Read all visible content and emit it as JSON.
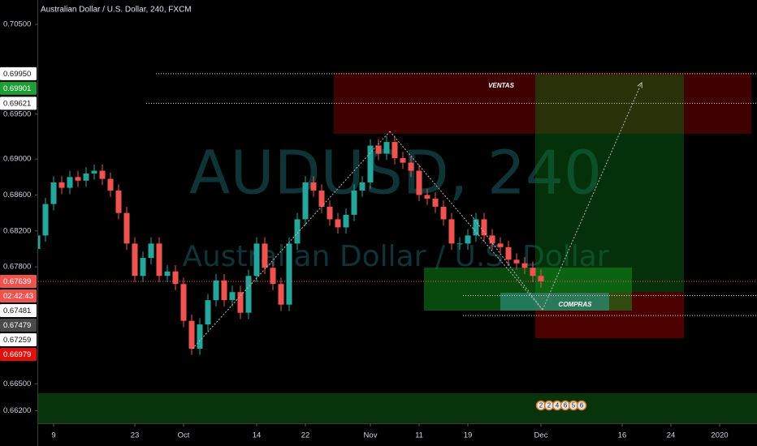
{
  "chart_data": {
    "type": "candlestick",
    "title": "Australian Dollar / U.S. Dollar, 240, FXCM",
    "watermark": [
      "AUDUSD, 240",
      "Australian Dollar / U.S. Dollar"
    ],
    "annotations": [
      "VENTAS",
      "COMPRAS"
    ],
    "up_color": "#26a69a",
    "down_color": "#ef5350",
    "x": [
      -2,
      -1,
      0,
      1,
      2,
      3,
      4,
      5,
      6,
      7,
      8,
      9,
      10,
      11,
      12,
      13,
      14,
      15,
      16,
      17,
      18,
      19,
      20,
      21,
      22,
      23,
      24,
      25,
      26,
      27,
      28,
      29,
      30,
      31,
      32,
      33,
      34,
      35,
      36,
      37,
      38,
      39,
      40,
      41,
      42,
      43,
      44,
      45,
      46,
      47,
      48,
      49,
      50,
      51,
      52,
      53,
      54,
      55,
      56,
      57,
      58,
      59,
      60
    ],
    "open": [
      0.68,
      0.6815,
      0.685,
      0.6874,
      0.6868,
      0.688,
      0.6876,
      0.6884,
      0.6887,
      0.6878,
      0.6865,
      0.684,
      0.6806,
      0.677,
      0.679,
      0.6806,
      0.677,
      0.6775,
      0.6761,
      0.672,
      0.6689,
      0.6716,
      0.6743,
      0.6765,
      0.6743,
      0.6752,
      0.6729,
      0.677,
      0.6806,
      0.6779,
      0.6761,
      0.6738,
      0.6806,
      0.6833,
      0.6874,
      0.6865,
      0.6847,
      0.6833,
      0.6824,
      0.6838,
      0.6865,
      0.6874,
      0.6915,
      0.6906,
      0.6919,
      0.6901,
      0.6896,
      0.6887,
      0.686,
      0.6856,
      0.6847,
      0.6833,
      0.6806,
      0.6806,
      0.6815,
      0.6833,
      0.6815,
      0.6806,
      0.6802,
      0.6788,
      0.6784,
      0.6779,
      0.677
    ],
    "high": [
      0.6822,
      0.6857,
      0.6881,
      0.6881,
      0.6887,
      0.6887,
      0.6891,
      0.6894,
      0.6894,
      0.6885,
      0.6872,
      0.6847,
      0.6813,
      0.6797,
      0.6813,
      0.6813,
      0.6782,
      0.6782,
      0.6768,
      0.6727,
      0.6723,
      0.675,
      0.6772,
      0.6772,
      0.6759,
      0.6759,
      0.6777,
      0.6813,
      0.6813,
      0.6786,
      0.6768,
      0.6813,
      0.684,
      0.6881,
      0.6881,
      0.6872,
      0.6854,
      0.684,
      0.6845,
      0.6872,
      0.6881,
      0.6922,
      0.6922,
      0.6926,
      0.6926,
      0.6908,
      0.6903,
      0.6894,
      0.6867,
      0.6863,
      0.6854,
      0.684,
      0.6813,
      0.6822,
      0.684,
      0.684,
      0.6822,
      0.6813,
      0.6809,
      0.6795,
      0.6791,
      0.6786,
      0.6777
    ],
    "low": [
      0.6793,
      0.6808,
      0.6843,
      0.6861,
      0.6861,
      0.6869,
      0.6869,
      0.6877,
      0.6871,
      0.6858,
      0.6833,
      0.6799,
      0.6763,
      0.6763,
      0.6783,
      0.6763,
      0.6763,
      0.6754,
      0.6713,
      0.6682,
      0.6682,
      0.6709,
      0.6736,
      0.6736,
      0.6736,
      0.6722,
      0.6722,
      0.6763,
      0.6772,
      0.6754,
      0.6731,
      0.6731,
      0.6799,
      0.6826,
      0.6858,
      0.684,
      0.6826,
      0.6817,
      0.6817,
      0.6831,
      0.6858,
      0.6867,
      0.6899,
      0.6899,
      0.6894,
      0.6889,
      0.688,
      0.6853,
      0.6849,
      0.684,
      0.6826,
      0.6799,
      0.6799,
      0.6799,
      0.6808,
      0.6808,
      0.6799,
      0.6795,
      0.6781,
      0.6777,
      0.6772,
      0.6763,
      0.6757
    ],
    "close": [
      0.6815,
      0.685,
      0.6874,
      0.6868,
      0.688,
      0.6876,
      0.6884,
      0.6887,
      0.6878,
      0.6865,
      0.684,
      0.6806,
      0.677,
      0.679,
      0.6806,
      0.677,
      0.6775,
      0.6761,
      0.672,
      0.6689,
      0.6716,
      0.6743,
      0.6765,
      0.6743,
      0.6752,
      0.6729,
      0.677,
      0.6806,
      0.6779,
      0.6761,
      0.6738,
      0.6806,
      0.6833,
      0.6874,
      0.6865,
      0.6847,
      0.6833,
      0.6824,
      0.6838,
      0.6865,
      0.6874,
      0.6915,
      0.6906,
      0.6919,
      0.6901,
      0.6896,
      0.6887,
      0.686,
      0.6856,
      0.6847,
      0.6833,
      0.6806,
      0.6806,
      0.6815,
      0.6833,
      0.6815,
      0.6806,
      0.6802,
      0.6788,
      0.6784,
      0.6779,
      0.677,
      0.6764
    ],
    "xlim": [
      -1.9,
      86.6
    ],
    "ylim": [
      0.6606,
      0.7077
    ],
    "xticks": [
      {
        "value": 0,
        "label": "9"
      },
      {
        "value": 10,
        "label": "23"
      },
      {
        "value": 16,
        "label": "Oct"
      },
      {
        "value": 25,
        "label": "14"
      },
      {
        "value": 31,
        "label": "22"
      },
      {
        "value": 39,
        "label": "Nov"
      },
      {
        "value": 45,
        "label": "11"
      },
      {
        "value": 51,
        "label": "19"
      },
      {
        "value": 60,
        "label": "Dec"
      },
      {
        "value": 70,
        "label": "16"
      },
      {
        "value": 76,
        "label": "24"
      },
      {
        "value": 82,
        "label": "2020"
      }
    ],
    "yticks": [
      {
        "value": 0.705,
        "label": "0.70500"
      },
      {
        "value": 0.695,
        "label": "0.69500"
      },
      {
        "value": 0.69,
        "label": "0.69000"
      },
      {
        "value": 0.686,
        "label": "0.68600"
      },
      {
        "value": 0.682,
        "label": "0.68200"
      },
      {
        "value": 0.678,
        "label": "0.67800"
      },
      {
        "value": 0.665,
        "label": "0.66500"
      },
      {
        "value": 0.662,
        "label": "0.66200"
      }
    ],
    "price_labels": [
      {
        "value": 0.6995,
        "label": "0.69950",
        "color": "#ffffff"
      },
      {
        "value": 0.69901,
        "label": "0.69901",
        "color": "#1e9e35"
      },
      {
        "value": 0.69621,
        "label": "0.69621",
        "color": "#ffffff"
      },
      {
        "value": 0.67639,
        "label": "0.67639",
        "color": "#ef5350"
      },
      {
        "value": 0.67481,
        "label": "0.67481",
        "color": "#ffffff"
      },
      {
        "value": 0.67479,
        "label": "0.67479",
        "color": "#4a4a4a"
      },
      {
        "value": 0.67259,
        "label": "0.67259",
        "color": "#ffffff"
      },
      {
        "value": 0.66979,
        "label": "0.66979",
        "color": "#e0100a"
      }
    ],
    "countdown": "02:42:43",
    "event_badges": [
      "2",
      "2",
      "4",
      "6",
      "5",
      "6"
    ]
  }
}
